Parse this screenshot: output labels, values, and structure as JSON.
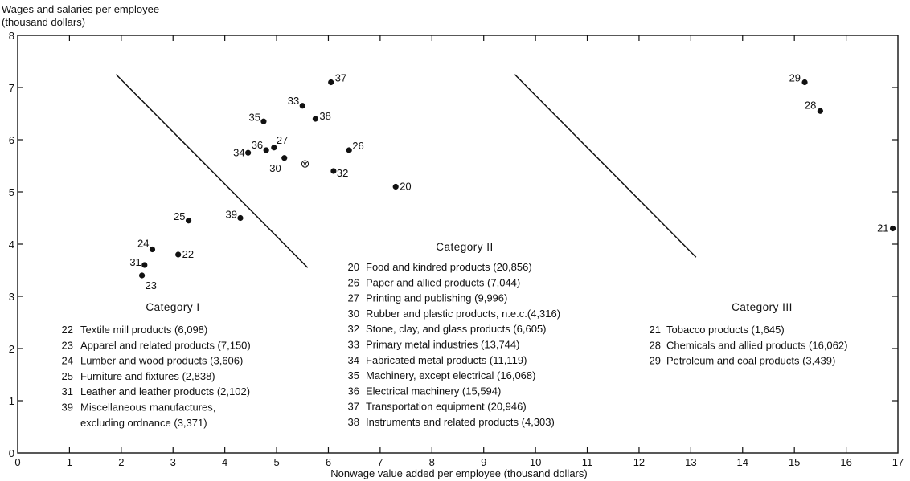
{
  "chart_data": {
    "type": "scatter",
    "title": "",
    "ylabel_line1": "Wages and salaries per employee",
    "ylabel_line2": "(thousand dollars)",
    "xlabel": "Nonwage value added per employee (thousand dollars)",
    "xlim": [
      0,
      17
    ],
    "ylim": [
      0,
      8
    ],
    "x_ticks": [
      "0",
      "1",
      "2",
      "3",
      "4",
      "5",
      "6",
      "7",
      "8",
      "9",
      "10",
      "11",
      "12",
      "13",
      "14",
      "15",
      "16",
      "17"
    ],
    "y_ticks": [
      "0",
      "1",
      "2",
      "3",
      "4",
      "5",
      "6",
      "7",
      "8"
    ],
    "grid": false,
    "points": [
      {
        "label": "20",
        "x": 7.3,
        "y": 5.1
      },
      {
        "label": "21",
        "x": 16.9,
        "y": 4.3
      },
      {
        "label": "22",
        "x": 3.1,
        "y": 3.8
      },
      {
        "label": "23",
        "x": 2.4,
        "y": 3.4
      },
      {
        "label": "24",
        "x": 2.6,
        "y": 3.9
      },
      {
        "label": "25",
        "x": 3.3,
        "y": 4.45
      },
      {
        "label": "26",
        "x": 6.4,
        "y": 5.8
      },
      {
        "label": "27",
        "x": 4.95,
        "y": 5.85
      },
      {
        "label": "28",
        "x": 15.5,
        "y": 6.55
      },
      {
        "label": "29",
        "x": 15.2,
        "y": 7.1
      },
      {
        "label": "30",
        "x": 5.15,
        "y": 5.65
      },
      {
        "label": "31",
        "x": 2.45,
        "y": 3.6
      },
      {
        "label": "32",
        "x": 6.1,
        "y": 5.4
      },
      {
        "label": "33",
        "x": 5.5,
        "y": 6.65
      },
      {
        "label": "34",
        "x": 4.45,
        "y": 5.75
      },
      {
        "label": "35",
        "x": 4.75,
        "y": 6.35
      },
      {
        "label": "36",
        "x": 4.8,
        "y": 5.8
      },
      {
        "label": "37",
        "x": 6.05,
        "y": 7.1
      },
      {
        "label": "38",
        "x": 5.75,
        "y": 6.4
      },
      {
        "label": "39",
        "x": 4.3,
        "y": 4.5
      }
    ],
    "mean_marker": {
      "x": 5.55,
      "y": 5.55,
      "symbol": "⊗"
    },
    "divider_lines": [
      {
        "x1": 1.9,
        "y1": 7.25,
        "x2": 5.6,
        "y2": 3.55
      },
      {
        "x1": 9.6,
        "y1": 7.25,
        "x2": 13.1,
        "y2": 3.75
      }
    ],
    "categories": [
      {
        "title": "Category I",
        "items": [
          {
            "code": "22",
            "text": "Textile mill products (6,098)"
          },
          {
            "code": "23",
            "text": "Apparel and related products (7,150)"
          },
          {
            "code": "24",
            "text": "Lumber and wood products (3,606)"
          },
          {
            "code": "25",
            "text": "Furniture and fixtures (2,838)"
          },
          {
            "code": "31",
            "text": "Leather and leather products (2,102)"
          },
          {
            "code": "39",
            "text": "Miscellaneous manufactures,"
          },
          {
            "code": "",
            "text": "excluding ordnance (3,371)"
          }
        ]
      },
      {
        "title": "Category II",
        "items": [
          {
            "code": "20",
            "text": "Food and kindred products (20,856)"
          },
          {
            "code": "26",
            "text": "Paper and allied products (7,044)"
          },
          {
            "code": "27",
            "text": "Printing and publishing (9,996)"
          },
          {
            "code": "30",
            "text": "Rubber and plastic products, n.e.c.(4,316)"
          },
          {
            "code": "32",
            "text": "Stone, clay, and glass products (6,605)"
          },
          {
            "code": "33",
            "text": "Primary metal industries (13,744)"
          },
          {
            "code": "34",
            "text": "Fabricated metal products (11,119)"
          },
          {
            "code": "35",
            "text": "Machinery, except electrical (16,068)"
          },
          {
            "code": "36",
            "text": "Electrical machinery (15,594)"
          },
          {
            "code": "37",
            "text": "Transportation equipment (20,946)"
          },
          {
            "code": "38",
            "text": "Instruments and related products (4,303)"
          }
        ]
      },
      {
        "title": "Category III",
        "items": [
          {
            "code": "21",
            "text": "Tobacco products (1,645)"
          },
          {
            "code": "28",
            "text": "Chemicals and allied products (16,062)"
          },
          {
            "code": "29",
            "text": "Petroleum and coal products (3,439)"
          }
        ]
      }
    ]
  }
}
